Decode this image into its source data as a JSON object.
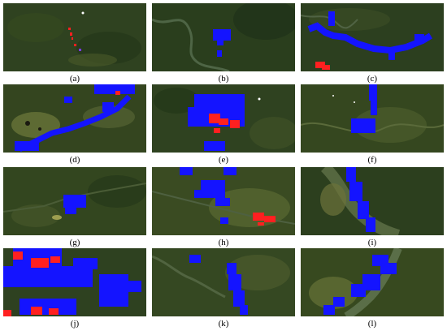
{
  "panels": [
    {
      "label": "(a)"
    },
    {
      "label": "(b)"
    },
    {
      "label": "(c)"
    },
    {
      "label": "(d)"
    },
    {
      "label": "(e)"
    },
    {
      "label": "(f)"
    },
    {
      "label": "(g)"
    },
    {
      "label": "(h)"
    },
    {
      "label": "(i)"
    },
    {
      "label": "(j)"
    },
    {
      "label": "(k)"
    },
    {
      "label": "(l)"
    }
  ],
  "colors": {
    "forest": "#2b3d1c",
    "forest_dark": "#1f2e15",
    "clearing": "#8a8e4a",
    "river": "#566a4a",
    "blue_mask": "#1414ff",
    "red_mask": "#ff2020"
  }
}
